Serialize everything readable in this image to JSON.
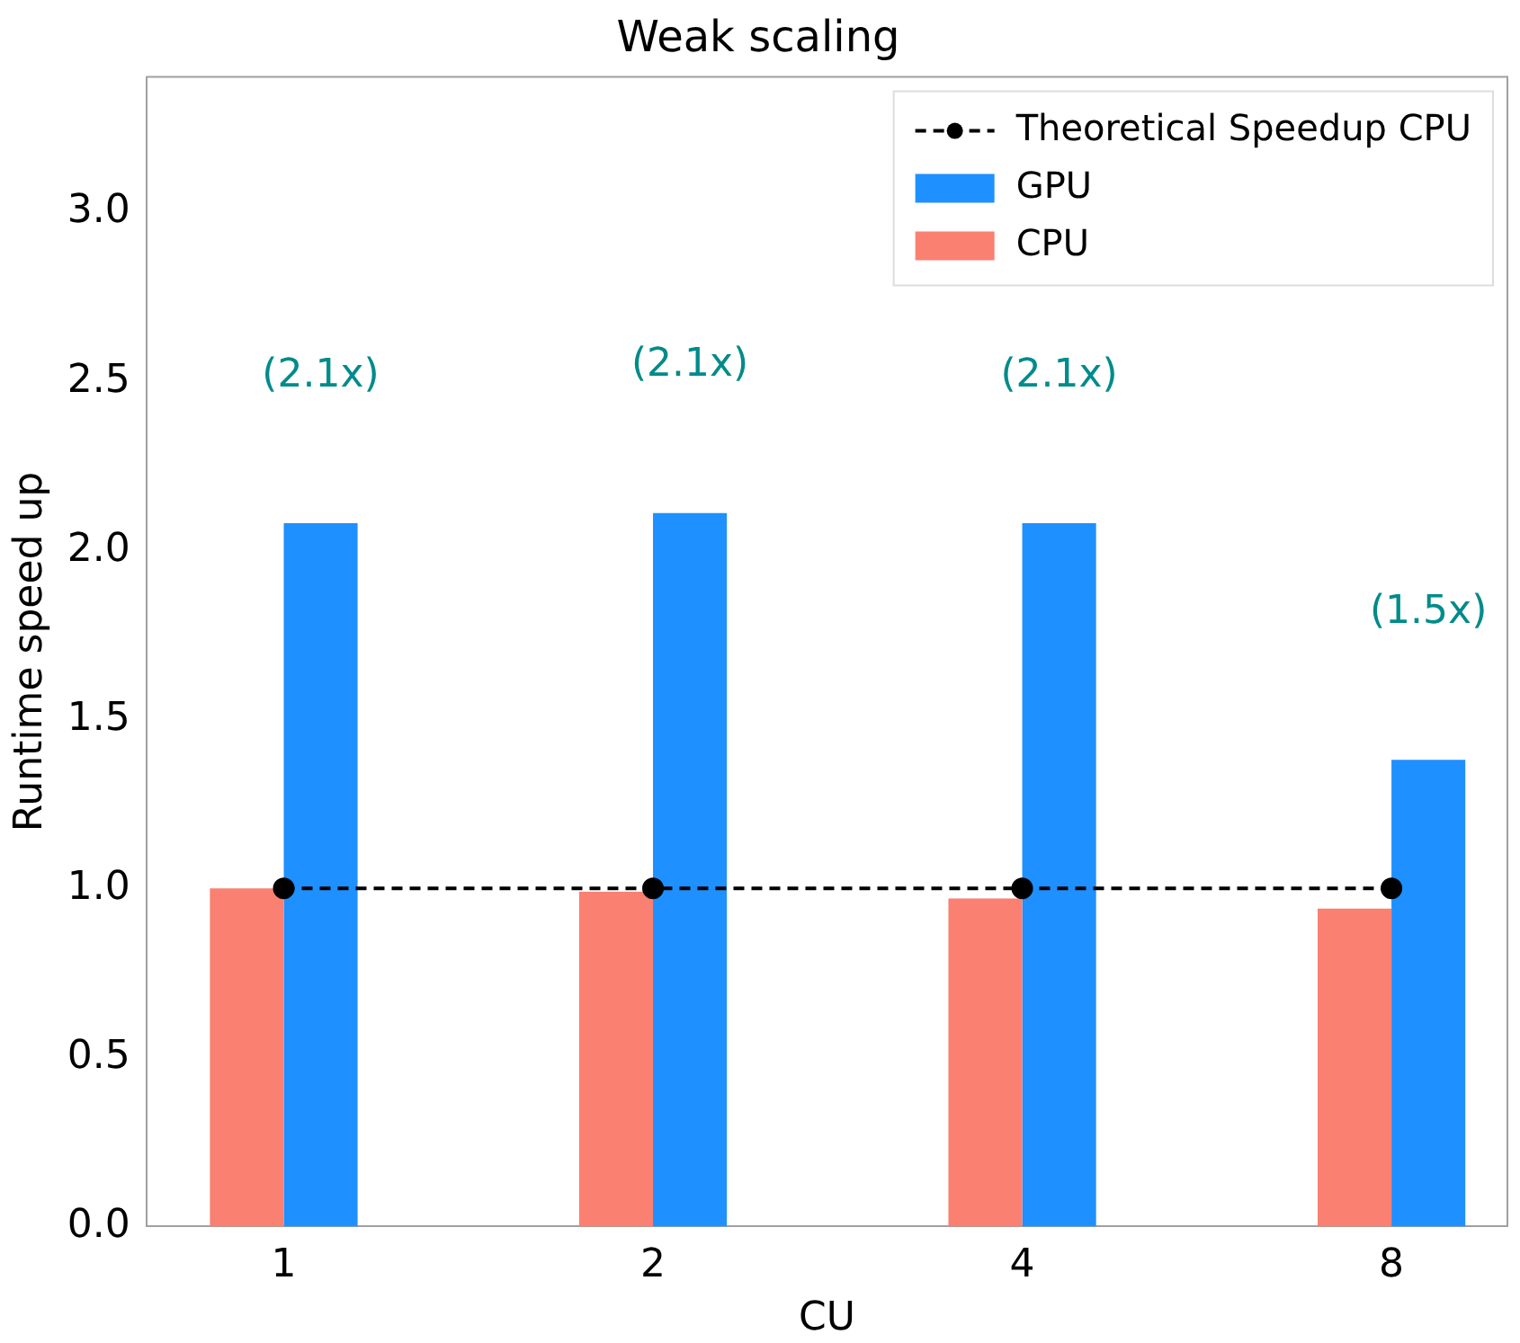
{
  "chart_data": {
    "type": "bar",
    "title": "Weak scaling",
    "xlabel": "CU",
    "ylabel": "Runtime speed up",
    "categories": [
      "1",
      "2",
      "4",
      "8"
    ],
    "series": [
      {
        "name": "CPU",
        "color": "#fa8072",
        "values": [
          1.0,
          0.99,
          0.97,
          0.94
        ]
      },
      {
        "name": "GPU",
        "color": "#1e90ff",
        "values": [
          2.08,
          2.11,
          2.08,
          1.38
        ]
      },
      {
        "name": "Theoretical Speedup CPU",
        "type": "line",
        "color": "#000000",
        "line_style": "dashed",
        "marker": "circle",
        "values": [
          1,
          1,
          1,
          1
        ]
      }
    ],
    "ylim": [
      0,
      3.4
    ],
    "yticks": [
      {
        "value": 0,
        "label": "0.0"
      },
      {
        "value": 0.5,
        "label": "0.5"
      },
      {
        "value": 1,
        "label": "1.0"
      },
      {
        "value": 1.5,
        "label": "1.5"
      },
      {
        "value": 2,
        "label": "2.0"
      },
      {
        "value": 2.5,
        "label": "2.5"
      },
      {
        "value": 3,
        "label": "3.0"
      }
    ],
    "grid": false,
    "legend": "top right",
    "annotations": [
      "(2.1x)",
      "(2.1x)",
      "(2.1x)",
      "(1.5x)"
    ]
  }
}
